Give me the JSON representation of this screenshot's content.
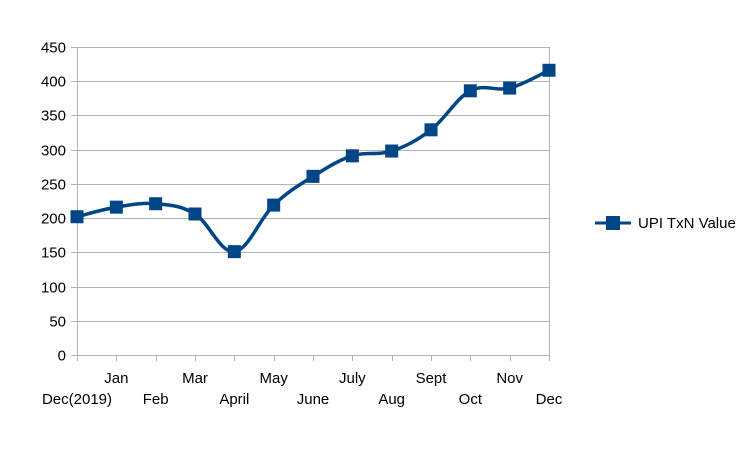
{
  "chart_data": {
    "type": "line",
    "title": "",
    "xlabel": "",
    "ylabel": "",
    "categories": [
      "Dec(2019)",
      "Jan",
      "Feb",
      "Mar",
      "April",
      "May",
      "June",
      "July",
      "Aug",
      "Sept",
      "Oct",
      "Nov",
      "Dec"
    ],
    "series": [
      {
        "name": "UPI TxN Value",
        "values": [
          202,
          216,
          221,
          206,
          151,
          219,
          261,
          291,
          298,
          329,
          386,
          390,
          416
        ],
        "color": "#004586",
        "marker": "square",
        "smooth": true
      }
    ],
    "ylim": [
      0,
      450
    ],
    "yticks": [
      0,
      50,
      100,
      150,
      200,
      250,
      300,
      350,
      400,
      450
    ],
    "grid": true,
    "legend": "right",
    "gridColor": "#b3b3b3",
    "axisColor": "#b3b3b3"
  }
}
